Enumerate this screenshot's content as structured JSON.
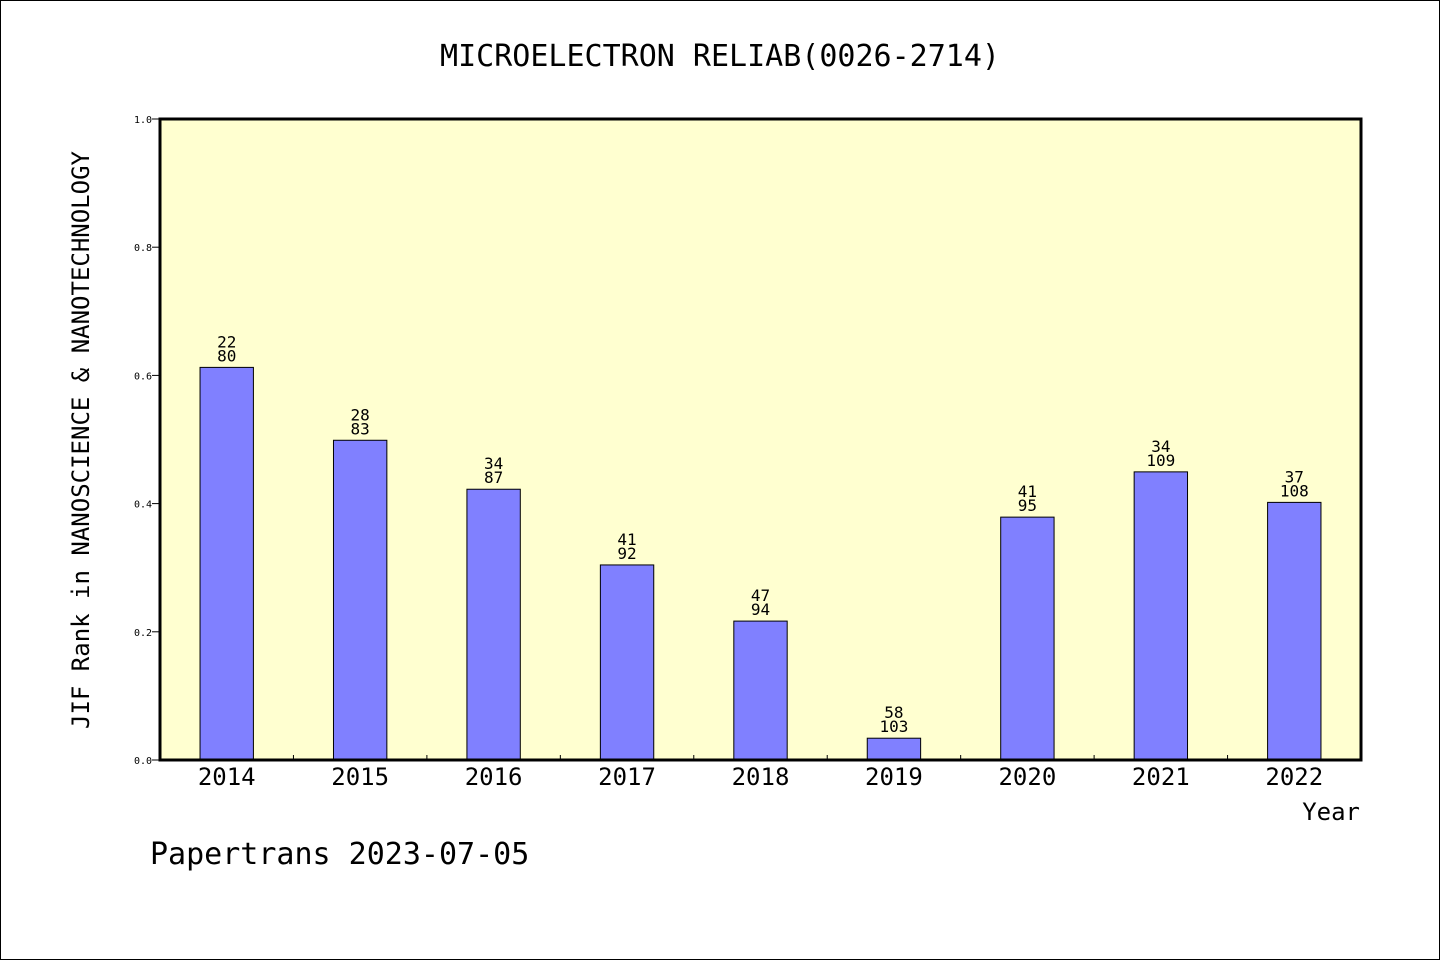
{
  "chart_data": {
    "type": "bar",
    "title": "MICROELECTRON RELIAB(0026-2714)",
    "xlabel": "Year",
    "ylabel": "JIF Rank in NANOSCIENCE & NANOTECHNOLOGY",
    "ylim": [
      0,
      1.0
    ],
    "yticks": [
      "0.0",
      "0.2",
      "0.4",
      "0.6",
      "0.8",
      "1.0"
    ],
    "ytick_values": [
      0,
      0.2,
      0.4,
      0.6,
      0.8,
      1.0
    ],
    "categories": [
      "2014",
      "2015",
      "2016",
      "2017",
      "2018",
      "2019",
      "2020",
      "2021",
      "2022"
    ],
    "values": [
      0.6125,
      0.4988,
      0.4224,
      0.3043,
      0.2167,
      0.034,
      0.3789,
      0.4495,
      0.4019
    ],
    "rank": [
      "22",
      "28",
      "34",
      "41",
      "47",
      "58",
      "41",
      "34",
      "37"
    ],
    "total": [
      "80",
      "83",
      "87",
      "92",
      "94",
      "103",
      "95",
      "109",
      "108"
    ],
    "grid": false,
    "colors": {
      "bar": "#8080ff",
      "plot_bg": "#ffffd0",
      "axis": "#000000"
    }
  },
  "footer": "Papertrans 2023-07-05"
}
